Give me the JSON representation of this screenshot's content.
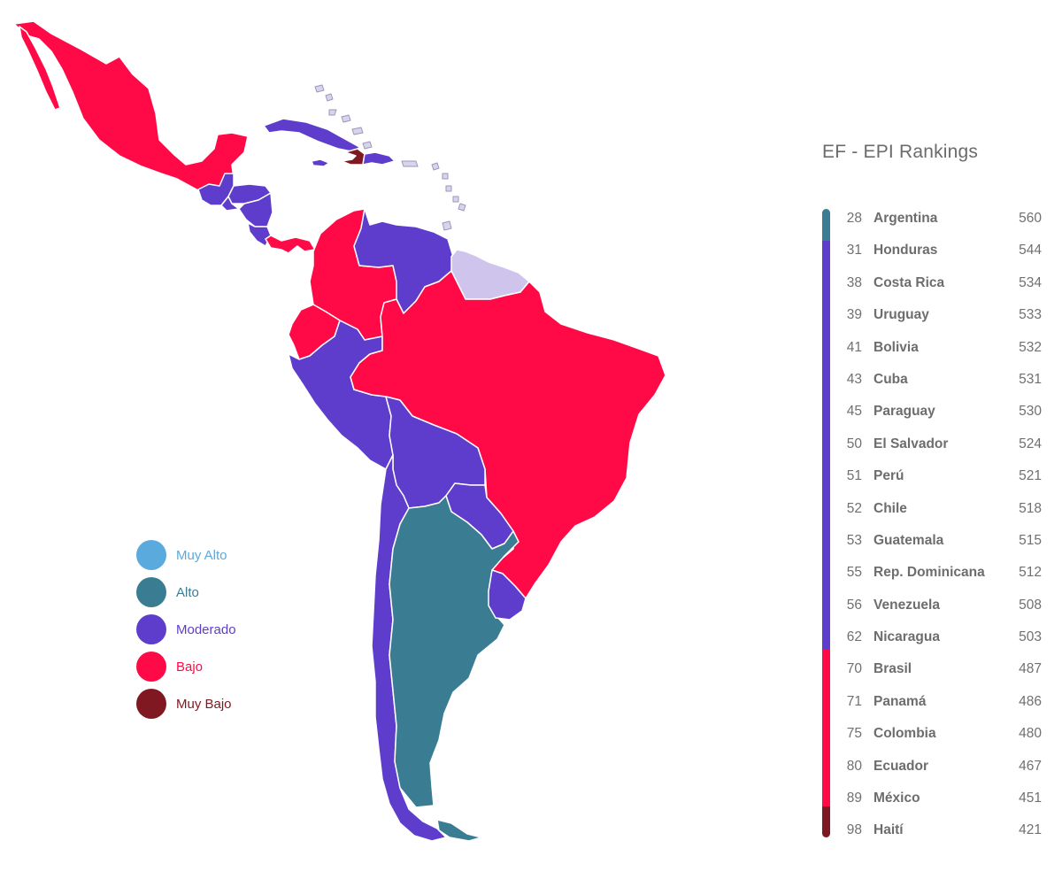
{
  "colors": {
    "muy_alto": "#5aaadd",
    "alto": "#3a7d93",
    "moderado": "#5e3dcc",
    "bajo": "#ff0a47",
    "muy_bajo": "#7f1820",
    "sin_datos": "#cfc5ec"
  },
  "legend": [
    {
      "label": "Muy Alto",
      "level": "muy_alto"
    },
    {
      "label": "Alto",
      "level": "alto"
    },
    {
      "label": "Moderado",
      "level": "moderado"
    },
    {
      "label": "Bajo",
      "level": "bajo"
    },
    {
      "label": "Muy Bajo",
      "level": "muy_bajo"
    }
  ],
  "rankings": {
    "title": "EF - EPI Rankings",
    "rows": [
      {
        "rank": "28",
        "country": "Argentina",
        "score": "560",
        "level": "alto"
      },
      {
        "rank": "31",
        "country": "Honduras",
        "score": "544",
        "level": "moderado"
      },
      {
        "rank": "38",
        "country": "Costa Rica",
        "score": "534",
        "level": "moderado"
      },
      {
        "rank": "39",
        "country": "Uruguay",
        "score": "533",
        "level": "moderado"
      },
      {
        "rank": "41",
        "country": "Bolivia",
        "score": "532",
        "level": "moderado"
      },
      {
        "rank": "43",
        "country": "Cuba",
        "score": "531",
        "level": "moderado"
      },
      {
        "rank": "45",
        "country": "Paraguay",
        "score": "530",
        "level": "moderado"
      },
      {
        "rank": "50",
        "country": "El Salvador",
        "score": "524",
        "level": "moderado"
      },
      {
        "rank": "51",
        "country": "Perú",
        "score": "521",
        "level": "moderado"
      },
      {
        "rank": "52",
        "country": "Chile",
        "score": "518",
        "level": "moderado"
      },
      {
        "rank": "53",
        "country": "Guatemala",
        "score": "515",
        "level": "moderado"
      },
      {
        "rank": "55",
        "country": "Rep. Dominicana",
        "score": "512",
        "level": "moderado"
      },
      {
        "rank": "56",
        "country": "Venezuela",
        "score": "508",
        "level": "moderado"
      },
      {
        "rank": "62",
        "country": "Nicaragua",
        "score": "503",
        "level": "moderado"
      },
      {
        "rank": "70",
        "country": "Brasil",
        "score": "487",
        "level": "bajo"
      },
      {
        "rank": "71",
        "country": "Panamá",
        "score": "486",
        "level": "bajo"
      },
      {
        "rank": "75",
        "country": "Colombia",
        "score": "480",
        "level": "bajo"
      },
      {
        "rank": "80",
        "country": "Ecuador",
        "score": "467",
        "level": "bajo"
      },
      {
        "rank": "89",
        "country": "México",
        "score": "451",
        "level": "bajo"
      },
      {
        "rank": "98",
        "country": "Haití",
        "score": "421",
        "level": "muy_bajo"
      }
    ]
  },
  "map_regions": [
    {
      "name": "mexico",
      "level": "bajo"
    },
    {
      "name": "guatemala",
      "level": "moderado"
    },
    {
      "name": "honduras",
      "level": "moderado"
    },
    {
      "name": "el-salvador",
      "level": "moderado"
    },
    {
      "name": "nicaragua",
      "level": "moderado"
    },
    {
      "name": "costa-rica",
      "level": "moderado"
    },
    {
      "name": "panama",
      "level": "bajo"
    },
    {
      "name": "cuba",
      "level": "moderado"
    },
    {
      "name": "jamaica",
      "level": "moderado"
    },
    {
      "name": "haiti",
      "level": "muy_bajo"
    },
    {
      "name": "dominican-republic",
      "level": "moderado"
    },
    {
      "name": "puerto-rico",
      "level": "sin_datos"
    },
    {
      "name": "colombia",
      "level": "bajo"
    },
    {
      "name": "venezuela",
      "level": "moderado"
    },
    {
      "name": "guianas",
      "level": "sin_datos"
    },
    {
      "name": "ecuador",
      "level": "bajo"
    },
    {
      "name": "peru",
      "level": "moderado"
    },
    {
      "name": "brazil",
      "level": "bajo"
    },
    {
      "name": "bolivia",
      "level": "moderado"
    },
    {
      "name": "paraguay",
      "level": "moderado"
    },
    {
      "name": "chile",
      "level": "moderado"
    },
    {
      "name": "argentina",
      "level": "alto"
    },
    {
      "name": "uruguay",
      "level": "moderado"
    }
  ]
}
